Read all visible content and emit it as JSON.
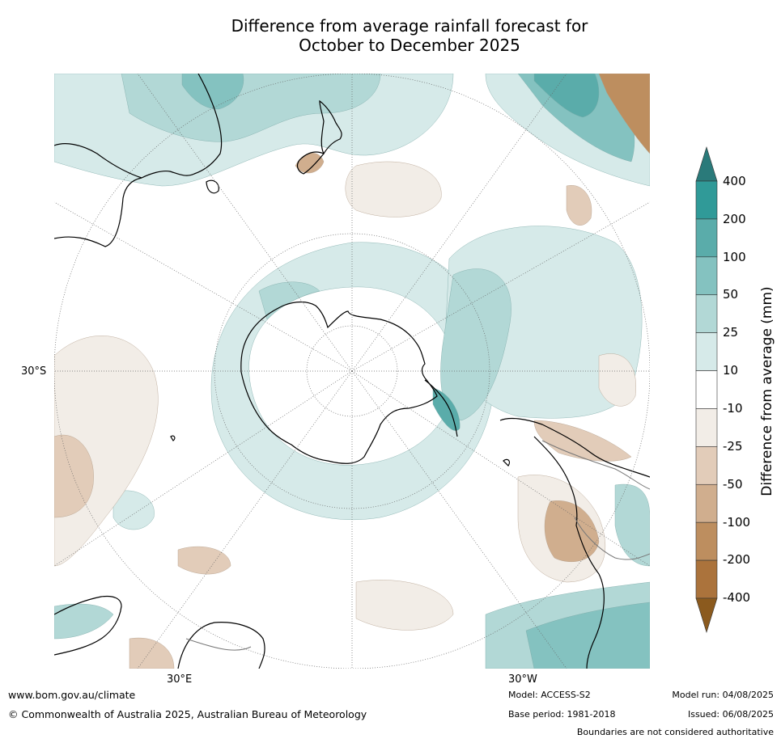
{
  "title_line1": "Difference from average rainfall forecast for",
  "title_line2": "October to December 2025",
  "map": {
    "projection": "south-polar-stereographic",
    "lat_label": "30°S",
    "lon_labels": [
      "30°E",
      "30°W"
    ],
    "colors": {
      "ocean": "#ffffff",
      "coast": "#000000",
      "border": "#777777",
      "grid": "#666666"
    }
  },
  "colorbar": {
    "label": "Difference from average (mm)",
    "ticks": [
      "400",
      "200",
      "100",
      "50",
      "25",
      "10",
      "-10",
      "-25",
      "-50",
      "-100",
      "-200",
      "-400"
    ],
    "top_color": "#2a7a7a",
    "bottom_color": "#8b5a1e",
    "bins": [
      {
        "range": "200 to 400",
        "color": "#309a98"
      },
      {
        "range": "100 to 200",
        "color": "#5aacaa"
      },
      {
        "range": "50 to 100",
        "color": "#84c2c0"
      },
      {
        "range": "25 to 50",
        "color": "#b2d8d6"
      },
      {
        "range": "10 to 25",
        "color": "#d6eae9"
      },
      {
        "range": "-10 to 10",
        "color": "#ffffff"
      },
      {
        "range": "-25 to -10",
        "color": "#f2ede7"
      },
      {
        "range": "-50 to -25",
        "color": "#e2ccb9"
      },
      {
        "range": "-100 to -50",
        "color": "#d0ae8e"
      },
      {
        "range": "-200 to -100",
        "color": "#bd8e5f"
      },
      {
        "range": "-400 to -200",
        "color": "#ab733c"
      }
    ]
  },
  "footer": {
    "url": "www.bom.gov.au/climate",
    "copyright": "© Commonwealth of Australia 2025, Australian Bureau of Meteorology",
    "model": "Model: ACCESS-S2",
    "base_period": "Base period: 1981-2018",
    "model_run": "Model run: 04/08/2025",
    "issued": "Issued: 06/08/2025",
    "disclaimer": "Boundaries are not considered authoritative"
  }
}
